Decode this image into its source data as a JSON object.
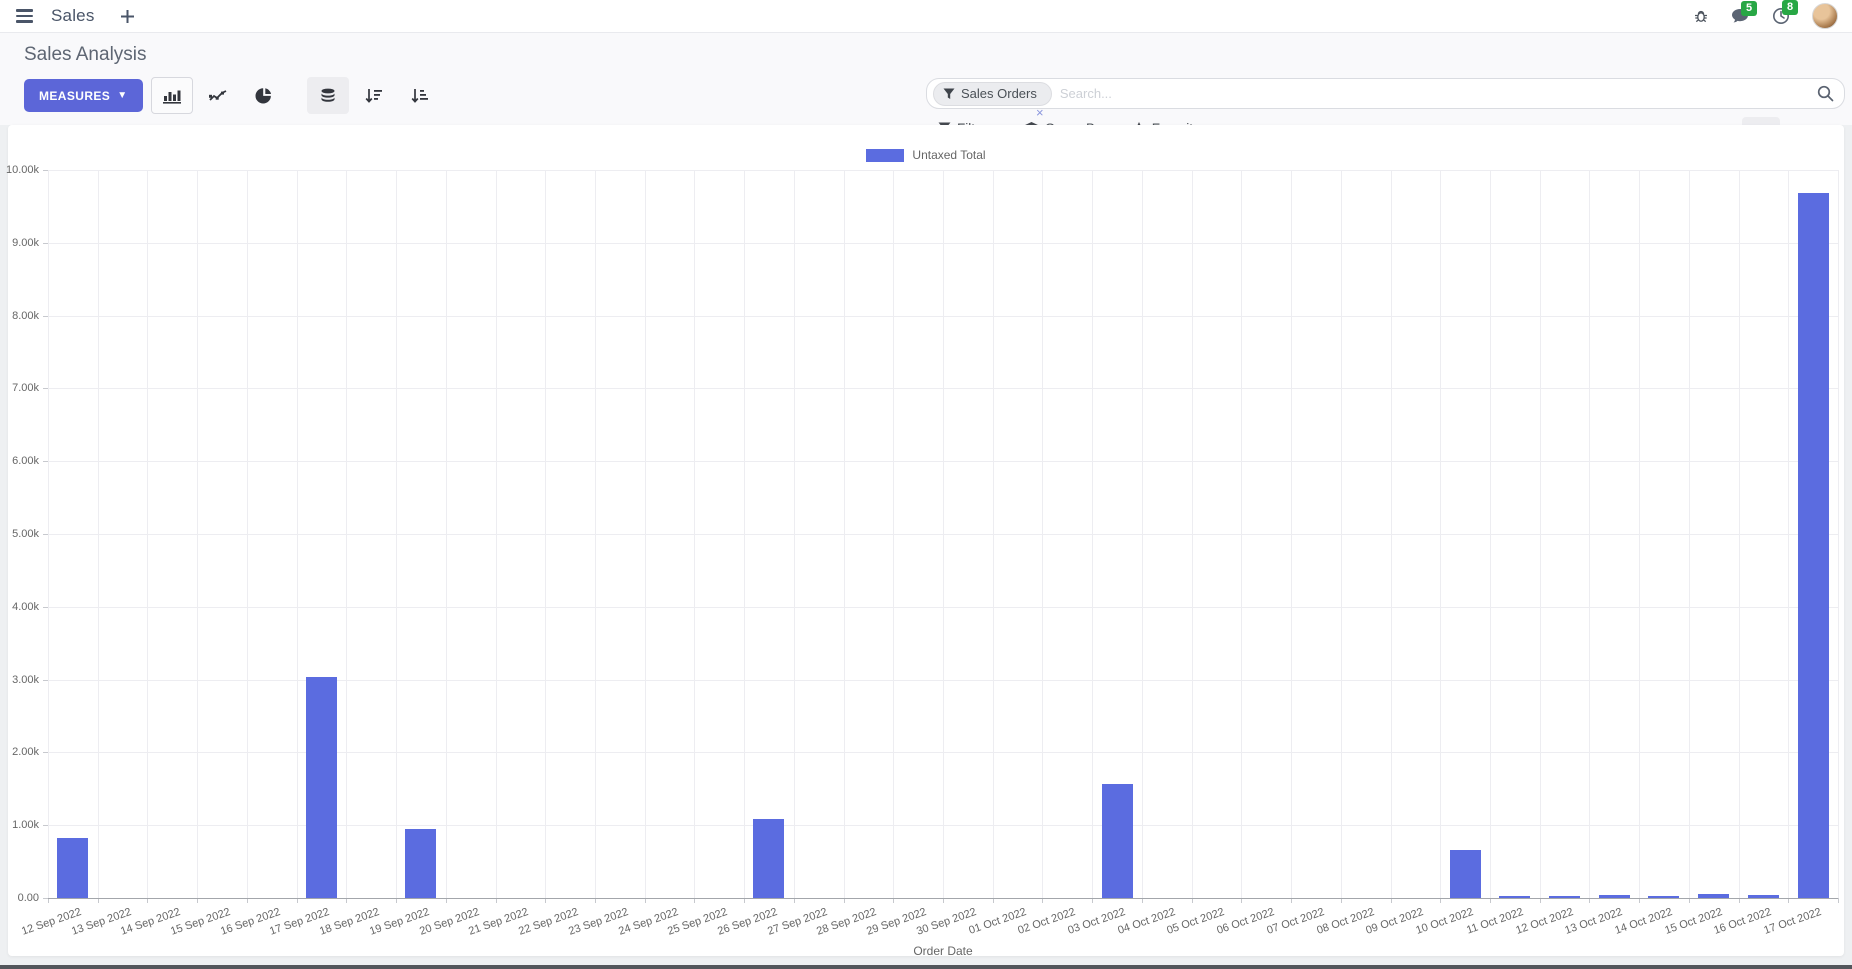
{
  "navbar": {
    "app_name": "Sales",
    "messages_badge": "5",
    "activities_badge": "8"
  },
  "control_panel": {
    "title": "Sales Analysis",
    "measures_label": "MEASURES",
    "search": {
      "facet": "Sales Orders",
      "placeholder": "Search...",
      "remove_icon": "×"
    },
    "filters_label": "Filters",
    "group_by_label": "Group By",
    "favorites_label": "Favorites"
  },
  "chart_data": {
    "type": "bar",
    "title": "",
    "xlabel": "Order Date",
    "ylabel": "",
    "ylim": [
      0,
      10000
    ],
    "grid": true,
    "legend_position": "top-center",
    "y_ticks": [
      "10.00k",
      "9.00k",
      "8.00k",
      "7.00k",
      "6.00k",
      "5.00k",
      "4.00k",
      "3.00k",
      "2.00k",
      "1.00k",
      "0.00"
    ],
    "categories": [
      "12 Sep 2022",
      "13 Sep 2022",
      "14 Sep 2022",
      "15 Sep 2022",
      "16 Sep 2022",
      "17 Sep 2022",
      "18 Sep 2022",
      "19 Sep 2022",
      "20 Sep 2022",
      "21 Sep 2022",
      "22 Sep 2022",
      "23 Sep 2022",
      "24 Sep 2022",
      "25 Sep 2022",
      "26 Sep 2022",
      "27 Sep 2022",
      "28 Sep 2022",
      "29 Sep 2022",
      "30 Sep 2022",
      "01 Oct 2022",
      "02 Oct 2022",
      "03 Oct 2022",
      "04 Oct 2022",
      "05 Oct 2022",
      "06 Oct 2022",
      "07 Oct 2022",
      "08 Oct 2022",
      "09 Oct 2022",
      "10 Oct 2022",
      "11 Oct 2022",
      "12 Oct 2022",
      "13 Oct 2022",
      "14 Oct 2022",
      "15 Oct 2022",
      "16 Oct 2022",
      "17 Oct 2022"
    ],
    "series": [
      {
        "name": "Untaxed Total",
        "color": "#5b6ce0",
        "values": [
          830,
          0,
          0,
          0,
          0,
          3030,
          0,
          950,
          0,
          0,
          0,
          0,
          0,
          0,
          1090,
          0,
          0,
          0,
          0,
          0,
          0,
          1560,
          0,
          0,
          0,
          0,
          0,
          0,
          660,
          25,
          30,
          45,
          30,
          55,
          40,
          9680
        ]
      }
    ]
  },
  "colors": {
    "accent": "#5c66d8",
    "bar": "#5b6ce0",
    "badge_green": "#28a745",
    "text_dark": "#4a5568",
    "text_muted": "#666666"
  }
}
